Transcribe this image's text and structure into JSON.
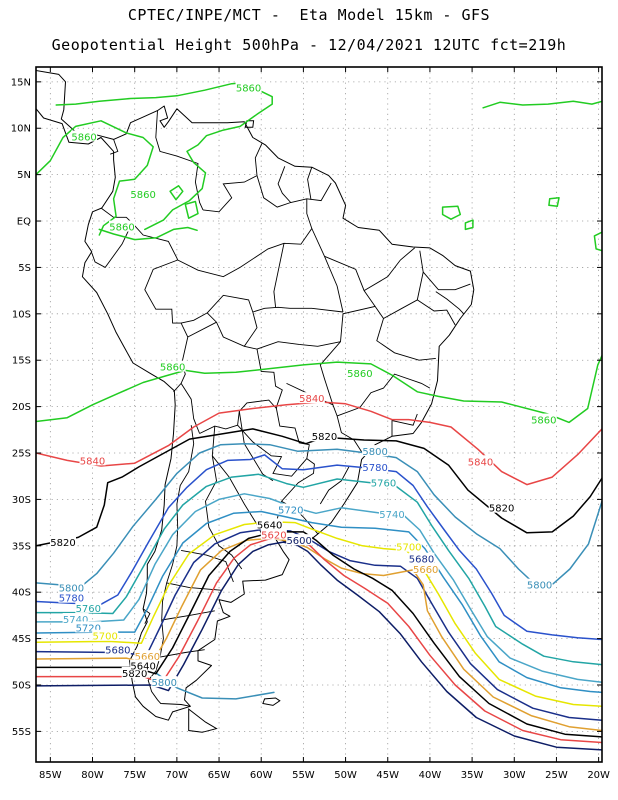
{
  "header": {
    "line1": "CPTEC/INPE/MCT -  Eta Model 15km - GFS",
    "line2": "Geopotential Height 500hPa - 12/04/2021 12UTC fct=219h"
  },
  "axes": {
    "lat_ticks": [
      "15N",
      "10N",
      "5N",
      "EQ",
      "5S",
      "10S",
      "15S",
      "20S",
      "25S",
      "30S",
      "35S",
      "40S",
      "45S",
      "50S",
      "55S"
    ],
    "lon_ticks": [
      "85W",
      "80W",
      "75W",
      "70W",
      "65W",
      "60W",
      "55W",
      "50W",
      "45W",
      "40W",
      "35W",
      "30W",
      "25W",
      "20W"
    ]
  },
  "contours": [
    {
      "value": "5860",
      "color": "#22cc22",
      "labels": [
        {
          "text": "5860",
          "at": [
            -61.5,
            14.3
          ]
        },
        {
          "text": "5860",
          "at": [
            -81.0,
            9.0
          ]
        },
        {
          "text": "5860",
          "at": [
            -74.0,
            2.8
          ]
        },
        {
          "text": "5860",
          "at": [
            -76.5,
            -0.7
          ]
        },
        {
          "text": "5860",
          "at": [
            -70.5,
            -15.8
          ]
        },
        {
          "text": "5860",
          "at": [
            -48.3,
            -16.5
          ]
        },
        {
          "text": "5860",
          "at": [
            -26.5,
            -21.5
          ]
        }
      ]
    },
    {
      "value": "5840",
      "color": "#e84646",
      "labels": [
        {
          "text": "5840",
          "at": [
            -80.0,
            -25.9
          ]
        },
        {
          "text": "5840",
          "at": [
            -54.0,
            -19.2
          ]
        },
        {
          "text": "5840",
          "at": [
            -34.0,
            -26.0
          ]
        }
      ]
    },
    {
      "value": "5820",
      "color": "#000000",
      "labels": [
        {
          "text": "5820",
          "at": [
            -83.5,
            -34.7
          ]
        },
        {
          "text": "5820",
          "at": [
            -52.5,
            -23.3
          ]
        },
        {
          "text": "5820",
          "at": [
            -31.5,
            -31.0
          ]
        },
        {
          "text": "5820",
          "at": [
            -75.0,
            -48.8
          ]
        }
      ]
    },
    {
      "value": "5800",
      "color": "#3a8fb7",
      "labels": [
        {
          "text": "5800",
          "at": [
            -82.5,
            -39.6
          ]
        },
        {
          "text": "5800",
          "at": [
            -46.5,
            -24.9
          ]
        },
        {
          "text": "5800",
          "at": [
            -27.0,
            -39.3
          ]
        },
        {
          "text": "5800",
          "at": [
            -71.5,
            -49.8
          ]
        }
      ]
    },
    {
      "value": "5780",
      "color": "#2a52cc",
      "labels": [
        {
          "text": "5780",
          "at": [
            -82.5,
            -40.7
          ]
        },
        {
          "text": "5780",
          "at": [
            -46.5,
            -26.6
          ]
        }
      ]
    },
    {
      "value": "5760",
      "color": "#22a5a5",
      "labels": [
        {
          "text": "5760",
          "at": [
            -80.5,
            -41.8
          ]
        },
        {
          "text": "5760",
          "at": [
            -45.5,
            -28.3
          ]
        }
      ]
    },
    {
      "value": "5740",
      "color": "#4aa6c8",
      "labels": [
        {
          "text": "5740",
          "at": [
            -82.0,
            -43.0
          ]
        },
        {
          "text": "5740",
          "at": [
            -44.5,
            -31.7
          ]
        }
      ]
    },
    {
      "value": "5720",
      "color": "#2f8fc4",
      "labels": [
        {
          "text": "5720",
          "at": [
            -80.5,
            -43.9
          ]
        },
        {
          "text": "5720",
          "at": [
            -56.5,
            -31.2
          ]
        }
      ]
    },
    {
      "value": "5700",
      "color": "#e6e600",
      "labels": [
        {
          "text": "5700",
          "at": [
            -78.5,
            -44.8
          ]
        },
        {
          "text": "5700",
          "at": [
            -42.5,
            -35.2
          ]
        }
      ]
    },
    {
      "value": "5680",
      "color": "#1a2f8a",
      "labels": [
        {
          "text": "5680",
          "at": [
            -77.0,
            -46.3
          ]
        },
        {
          "text": "5680",
          "at": [
            -41.0,
            -36.5
          ]
        }
      ]
    },
    {
      "value": "5660",
      "color": "#e0a030",
      "labels": [
        {
          "text": "5660",
          "at": [
            -73.5,
            -47.0
          ]
        },
        {
          "text": "5660",
          "at": [
            -40.5,
            -37.6
          ]
        }
      ]
    },
    {
      "value": "5640",
      "color": "#000000",
      "labels": [
        {
          "text": "5640",
          "at": [
            -74.0,
            -48.0
          ]
        },
        {
          "text": "5640",
          "at": [
            -59.0,
            -32.8
          ]
        }
      ]
    },
    {
      "value": "5620",
      "color": "#e84646",
      "labels": [
        {
          "text": "5620",
          "at": [
            -58.5,
            -33.9
          ]
        }
      ]
    },
    {
      "value": "5600",
      "color": "#0d1d66",
      "labels": [
        {
          "text": "5600",
          "at": [
            -55.5,
            -34.5
          ]
        }
      ]
    }
  ]
}
